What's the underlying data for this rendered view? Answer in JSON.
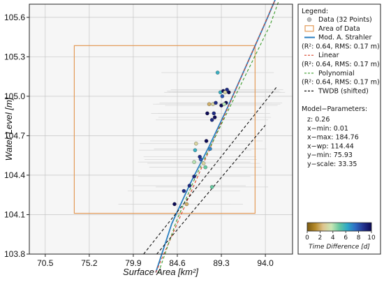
{
  "chart_data": {
    "type": "scatter",
    "xlabel": "Surface Area [km²]",
    "ylabel": "Water Level [m]",
    "xlim": [
      68.8,
      96.9
    ],
    "ylim": [
      103.8,
      105.7
    ],
    "x_ticks": [
      "70.5",
      "75.2",
      "79.9",
      "84.6",
      "89.3",
      "94.0"
    ],
    "x_tick_values": [
      70.5,
      75.2,
      79.9,
      84.6,
      89.3,
      94.0
    ],
    "y_ticks": [
      "103.8",
      "104.1",
      "104.4",
      "104.7",
      "105.0",
      "105.3",
      "105.6"
    ],
    "y_tick_values": [
      103.8,
      104.1,
      104.4,
      104.7,
      105.0,
      105.3,
      105.6
    ],
    "grid": true,
    "legend_position": "right",
    "area_of_data": {
      "x0": 73.6,
      "x1": 92.9,
      "y0": 104.11,
      "y1": 105.385
    },
    "points": [
      {
        "x": 84.3,
        "y": 104.18,
        "t": 10
      },
      {
        "x": 85.6,
        "y": 104.18,
        "t": 2
      },
      {
        "x": 85.3,
        "y": 104.28,
        "t": 9
      },
      {
        "x": 85.9,
        "y": 104.32,
        "t": 9
      },
      {
        "x": 88.3,
        "y": 104.31,
        "t": 5
      },
      {
        "x": 86.4,
        "y": 104.39,
        "t": 9
      },
      {
        "x": 87.6,
        "y": 104.46,
        "t": 5
      },
      {
        "x": 87.4,
        "y": 104.49,
        "t": 3
      },
      {
        "x": 86.4,
        "y": 104.5,
        "t": 4
      },
      {
        "x": 87.1,
        "y": 104.52,
        "t": 8
      },
      {
        "x": 87.0,
        "y": 104.54,
        "t": 9
      },
      {
        "x": 86.5,
        "y": 104.59,
        "t": 6
      },
      {
        "x": 88.1,
        "y": 104.6,
        "t": 7
      },
      {
        "x": 86.6,
        "y": 104.64,
        "t": 3
      },
      {
        "x": 87.7,
        "y": 104.66,
        "t": 10
      },
      {
        "x": 88.3,
        "y": 104.82,
        "t": 9
      },
      {
        "x": 88.6,
        "y": 104.84,
        "t": 10
      },
      {
        "x": 88.5,
        "y": 104.87,
        "t": 9
      },
      {
        "x": 87.8,
        "y": 104.87,
        "t": 10
      },
      {
        "x": 89.3,
        "y": 104.93,
        "t": 10
      },
      {
        "x": 88.0,
        "y": 104.94,
        "t": 2
      },
      {
        "x": 88.4,
        "y": 104.94,
        "t": 3
      },
      {
        "x": 88.7,
        "y": 104.95,
        "t": 9
      },
      {
        "x": 89.8,
        "y": 104.95,
        "t": 10
      },
      {
        "x": 89.6,
        "y": 104.94,
        "t": 4
      },
      {
        "x": 89.4,
        "y": 105.0,
        "t": 8
      },
      {
        "x": 90.1,
        "y": 105.03,
        "t": 10
      },
      {
        "x": 89.2,
        "y": 105.03,
        "t": 6
      },
      {
        "x": 89.5,
        "y": 105.04,
        "t": 10
      },
      {
        "x": 89.9,
        "y": 105.05,
        "t": 9
      },
      {
        "x": 89.7,
        "y": 105.03,
        "t": 3
      },
      {
        "x": 88.9,
        "y": 105.18,
        "t": 6
      }
    ],
    "colorbar": {
      "label": "Time Difference [d]",
      "ticks": [
        "0",
        "2",
        "4",
        "6",
        "8",
        "10"
      ],
      "min": 0,
      "max": 10,
      "colors": [
        "#7a5a12",
        "#b58a2a",
        "#dfc58f",
        "#c9e6b4",
        "#66c8a0",
        "#2ea8c8",
        "#2f6cc4",
        "#23338f",
        "#0c0a55"
      ]
    },
    "series": [
      {
        "name": "Mod. A. Strahler",
        "color": "#2a7fc0",
        "style": "solid",
        "x": [
          82.3,
          84.0,
          86.0,
          88.0,
          90.0,
          92.0,
          94.0,
          95.2
        ],
        "y": [
          103.66,
          104.03,
          104.34,
          104.62,
          104.92,
          105.24,
          105.56,
          105.76
        ]
      },
      {
        "name": "Linear",
        "color": "#d9452b",
        "style": "dashed",
        "x": [
          82.3,
          95.2
        ],
        "y": [
          103.66,
          105.76
        ]
      },
      {
        "name": "Polynomial",
        "color": "#3a9a2a",
        "style": "dashed",
        "x": [
          82.6,
          84.5,
          86.5,
          88.5,
          90.5,
          92.5,
          94.5,
          95.4
        ],
        "y": [
          103.66,
          104.05,
          104.38,
          104.67,
          104.96,
          105.25,
          105.54,
          105.72
        ]
      },
      {
        "name": "TWDB (shifted)",
        "color": "#111111",
        "style": "dashed",
        "x": [
          81.0,
          95.2
        ],
        "y": [
          103.8,
          105.07
        ]
      },
      {
        "name": "TWDB (shifted)",
        "color": "#111111",
        "style": "dashed",
        "x": [
          82.4,
          94.0
        ],
        "y": [
          103.8,
          104.78
        ]
      }
    ]
  },
  "legend": {
    "title": "Legend:",
    "items": [
      {
        "label": "Data (32 Points)",
        "kind": "marker",
        "color": "#bbbbbb"
      },
      {
        "label": "Area of Data",
        "kind": "box",
        "color": "#e39a57"
      },
      {
        "label": "Mod. A. Strahler",
        "kind": "line",
        "color": "#2a7fc0"
      },
      {
        "label": "(R²: 0.64, RMS: 0.17 m)",
        "kind": "text"
      },
      {
        "label": "Linear",
        "kind": "dash",
        "color": "#d9452b"
      },
      {
        "label": "(R²: 0.64, RMS: 0.17 m)",
        "kind": "text"
      },
      {
        "label": "Polynomial",
        "kind": "dash",
        "color": "#3a9a2a"
      },
      {
        "label": "(R²: 0.64, RMS: 0.17 m)",
        "kind": "text"
      },
      {
        "label": "TWDB (shifted)",
        "kind": "dash",
        "color": "#111111"
      }
    ],
    "params_title": "Model−Parameters:",
    "params": [
      "z: 0.26",
      "x−min: 0.01",
      "x−max: 184.76",
      "x−wp: 114.44",
      "y−min: 75.93",
      "y−scale: 33.35"
    ]
  }
}
